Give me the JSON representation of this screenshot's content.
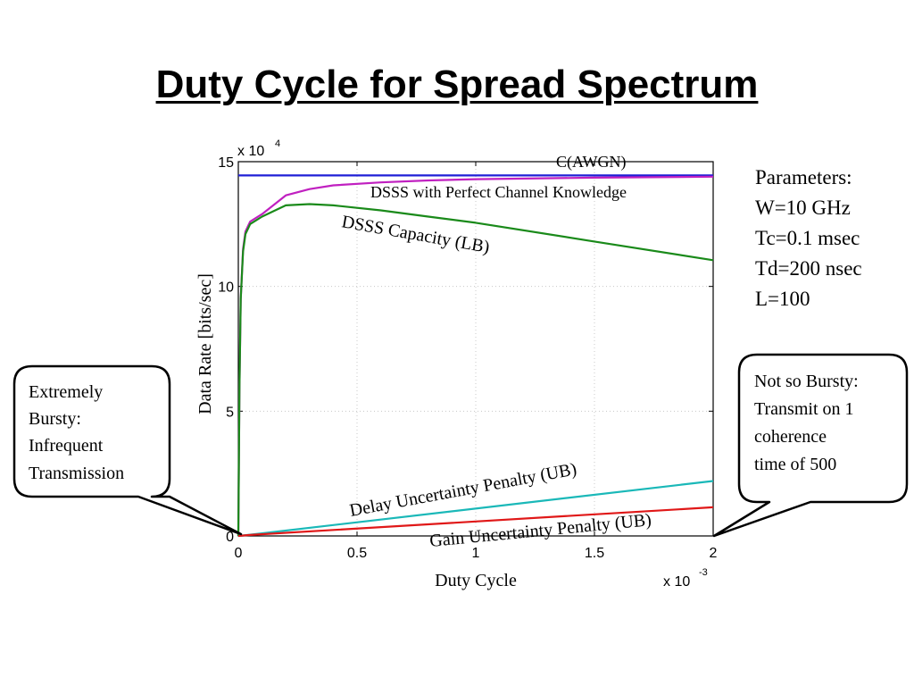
{
  "slide": {
    "title": "Duty Cycle for Spread Spectrum"
  },
  "parameters": {
    "heading": "Parameters:",
    "lines": [
      "W=10 GHz",
      "Tc=0.1 msec",
      "Td=200 nsec",
      "L=100"
    ]
  },
  "callouts": {
    "left": [
      "Extremely",
      "Bursty:",
      "Infrequent",
      "Transmission"
    ],
    "right": [
      "Not so Bursty:",
      "Transmit on 1",
      "coherence",
      "time of 500"
    ]
  },
  "chart_data": {
    "type": "line",
    "xlabel": "Duty Cycle",
    "ylabel": "Data Rate [bits/sec]",
    "x_multiplier": "x 10",
    "x_multiplier_exp": "-3",
    "y_multiplier": "x 10",
    "y_multiplier_exp": "4",
    "xlim": [
      0,
      0.002
    ],
    "ylim": [
      0,
      150000
    ],
    "x_ticks": [
      0,
      0.0005,
      0.001,
      0.0015,
      0.002
    ],
    "x_tick_labels": [
      "0",
      "0.5",
      "1",
      "1.5",
      "2"
    ],
    "y_ticks": [
      0,
      50000,
      100000,
      150000
    ],
    "y_tick_labels": [
      "0",
      "5",
      "10",
      "15"
    ],
    "grid": true,
    "series": [
      {
        "name": "C(AWGN)",
        "color": "#1f1fd6",
        "x": [
          0,
          0.002
        ],
        "y": [
          144500,
          144500
        ]
      },
      {
        "name": "DSSS with Perfect Channel Knowledge",
        "color": "#c020c0",
        "x": [
          0,
          5e-06,
          1e-05,
          2e-05,
          3e-05,
          5e-05,
          0.0001,
          0.0002,
          0.0003,
          0.0004,
          0.0006,
          0.0008,
          0.001,
          0.0015,
          0.002
        ],
        "y": [
          0,
          60000,
          95000,
          115000,
          122000,
          126000,
          129000,
          136500,
          139000,
          140500,
          141700,
          142500,
          143000,
          143600,
          144000
        ]
      },
      {
        "name": "DSSS Capacity (LB)",
        "color": "#1a8a1a",
        "x": [
          0,
          5e-06,
          1e-05,
          2e-05,
          3e-05,
          5e-05,
          0.0001,
          0.0002,
          0.0003,
          0.0004,
          0.0006,
          0.0008,
          0.001,
          0.0015,
          0.002
        ],
        "y": [
          0,
          60000,
          95000,
          114000,
          121000,
          125000,
          128000,
          132500,
          133000,
          132500,
          130500,
          128000,
          125500,
          118000,
          110500
        ]
      },
      {
        "name": "Delay Uncertainty Penalty (UB)",
        "color": "#1ab8b8",
        "x": [
          0,
          5e-05,
          0.002
        ],
        "y": [
          0,
          500,
          22000
        ]
      },
      {
        "name": "Gain Uncertainty Penalty (UB)",
        "color": "#e01818",
        "x": [
          0,
          5e-05,
          0.002
        ],
        "y": [
          0,
          400,
          11500
        ]
      }
    ]
  }
}
